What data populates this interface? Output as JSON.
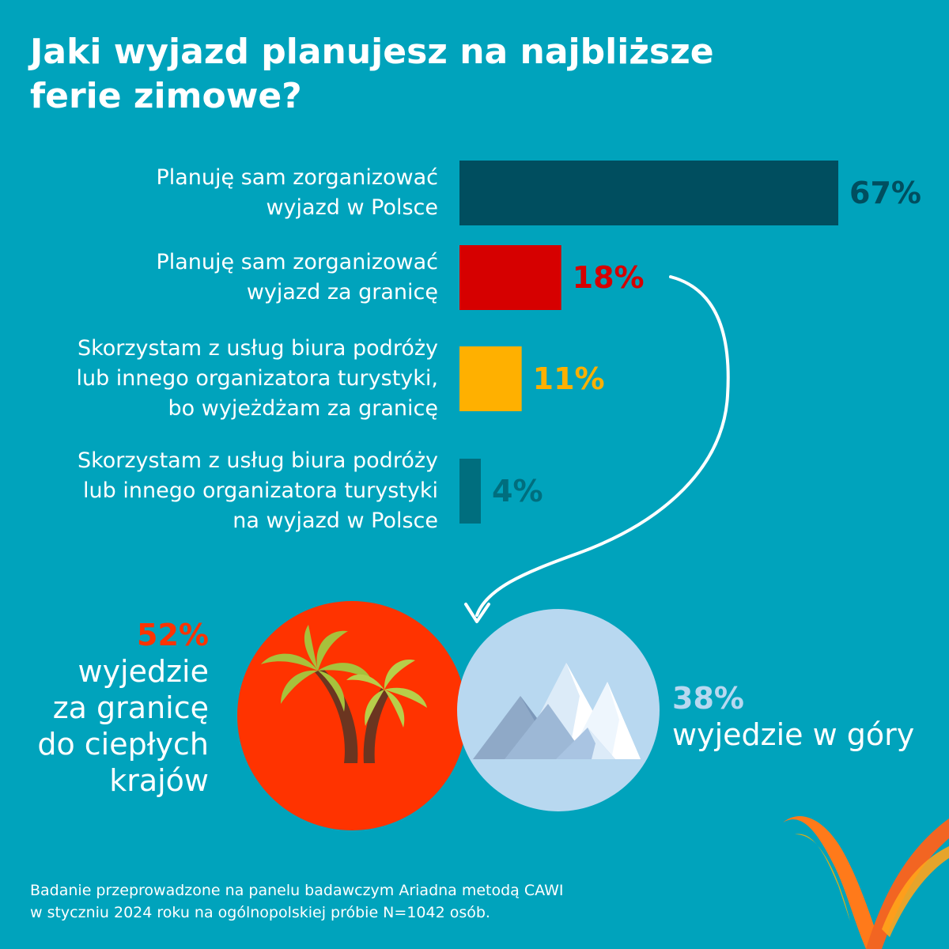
{
  "title_lines": [
    "Jaki wyjazd planujesz na najbliższe",
    "ferie zimowe?"
  ],
  "colors": {
    "background": "#00a3bc",
    "dark_teal": "#004e5f",
    "red": "#d60000",
    "amber": "#ffb000",
    "teal": "#006e7e",
    "orange_red": "#ff3300",
    "light_blue": "#b8d8f0"
  },
  "chart_data": {
    "type": "bar",
    "orientation": "horizontal",
    "xlim": [
      0,
      67
    ],
    "categories": [
      [
        "Planuję sam zorganizować",
        "wyjazd w Polsce"
      ],
      [
        "Planuję sam zorganizować",
        "wyjazd za granicę"
      ],
      [
        "Skorzystam z usług biura podróży",
        "lub innego organizatora turystyki,",
        "bo wyjeżdżam za granicę"
      ],
      [
        "Skorzystam z usług biura podróży",
        "lub innego organizatora turystyki",
        "na wyjazd w Polsce"
      ]
    ],
    "values": [
      67,
      18,
      11,
      4
    ],
    "value_labels": [
      "67%",
      "18%",
      "11%",
      "4%"
    ],
    "bar_colors": [
      "#004e5f",
      "#d60000",
      "#ffb000",
      "#006e7e"
    ],
    "label_colors": [
      "#004e5f",
      "#d60000",
      "#ffb000",
      "#006e7e"
    ]
  },
  "stats": {
    "warm": {
      "value": "52%",
      "lines": [
        "wyjedzie",
        "za granicę",
        "do ciepłych",
        "krajów"
      ],
      "color": "#ff3300",
      "icon": "palm-trees-icon"
    },
    "mountains": {
      "value": "38%",
      "lines": [
        "wyjedzie w góry"
      ],
      "color": "#b8d8f0",
      "icon": "mountains-icon"
    }
  },
  "footnote_lines": [
    "Badanie przeprowadzone na panelu badawczym Ariadna metodą CAWI",
    "w styczniu 2024 roku na ogólnopolskiej próbie N=1042 osób."
  ],
  "logo_icon": "ariadna-logo-icon"
}
